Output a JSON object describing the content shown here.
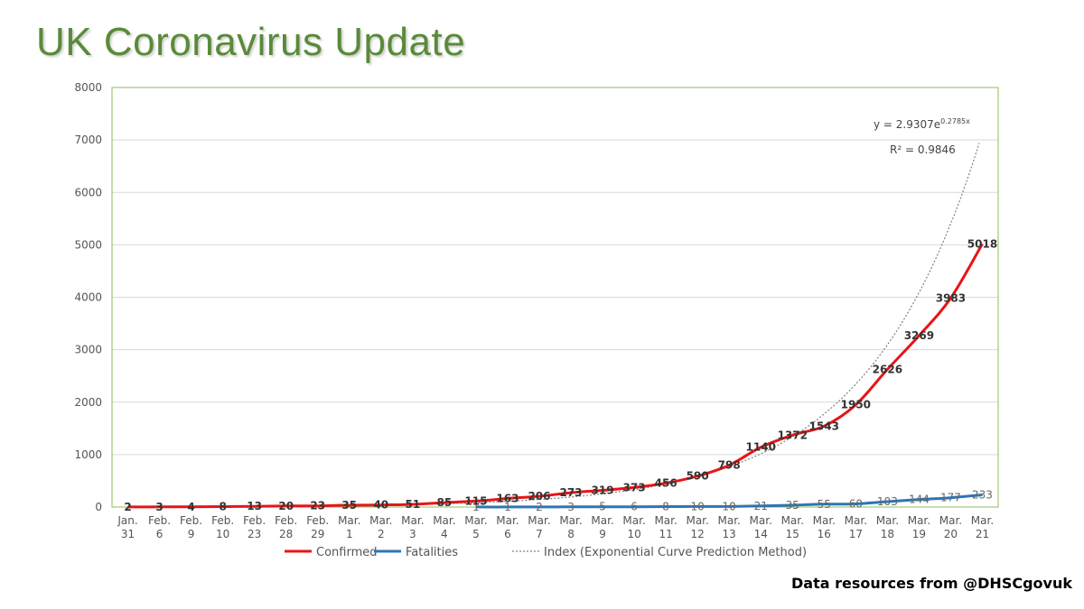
{
  "title": "UK Coronavirus Update",
  "source": "Data resources from @DHSCgovuk",
  "colors": {
    "title": "#5a8a3a",
    "plot_border": "#8bbf5a",
    "confirmed": "#e81416",
    "fatalities": "#2e75b6",
    "index": "#808080"
  },
  "chart_data": {
    "type": "line",
    "title": "",
    "xlabel": "",
    "ylabel": "",
    "ylim": [
      0,
      8000
    ],
    "yticks": [
      0,
      1000,
      2000,
      3000,
      4000,
      5000,
      6000,
      7000,
      8000
    ],
    "grid": true,
    "legend_position": "bottom",
    "categories": [
      [
        "Jan.",
        "31"
      ],
      [
        "Feb.",
        "6"
      ],
      [
        "Feb.",
        "9"
      ],
      [
        "Feb.",
        "10"
      ],
      [
        "Feb.",
        "23"
      ],
      [
        "Feb.",
        "28"
      ],
      [
        "Feb.",
        "29"
      ],
      [
        "Mar.",
        "1"
      ],
      [
        "Mar.",
        "2"
      ],
      [
        "Mar.",
        "3"
      ],
      [
        "Mar.",
        "4"
      ],
      [
        "Mar.",
        "5"
      ],
      [
        "Mar.",
        "6"
      ],
      [
        "Mar.",
        "7"
      ],
      [
        "Mar.",
        "8"
      ],
      [
        "Mar.",
        "9"
      ],
      [
        "Mar.",
        "10"
      ],
      [
        "Mar.",
        "11"
      ],
      [
        "Mar.",
        "12"
      ],
      [
        "Mar.",
        "13"
      ],
      [
        "Mar.",
        "14"
      ],
      [
        "Mar.",
        "15"
      ],
      [
        "Mar.",
        "16"
      ],
      [
        "Mar.",
        "17"
      ],
      [
        "Mar.",
        "18"
      ],
      [
        "Mar.",
        "19"
      ],
      [
        "Mar.",
        "20"
      ],
      [
        "Mar.",
        "21"
      ]
    ],
    "series": [
      {
        "name": "Confirmed",
        "values": [
          2,
          3,
          4,
          8,
          13,
          20,
          23,
          35,
          40,
          51,
          85,
          115,
          163,
          206,
          273,
          319,
          373,
          456,
          590,
          798,
          1140,
          1372,
          1543,
          1950,
          2626,
          3269,
          3983,
          5018
        ]
      },
      {
        "name": "Fatalities",
        "values": [
          null,
          null,
          null,
          null,
          null,
          null,
          null,
          null,
          null,
          null,
          null,
          1,
          1,
          2,
          3,
          5,
          6,
          8,
          10,
          10,
          21,
          35,
          55,
          60,
          103,
          144,
          177,
          233
        ]
      }
    ],
    "trendline": {
      "name": "Index (Exponential Curve Prediction Method)",
      "type": "exponential",
      "a": 2.9307,
      "b": 0.2785,
      "equation_prefix": "y = 2.9307e",
      "equation_exponent": "0.2785x",
      "r2_label": "R² = 0.9846"
    }
  }
}
